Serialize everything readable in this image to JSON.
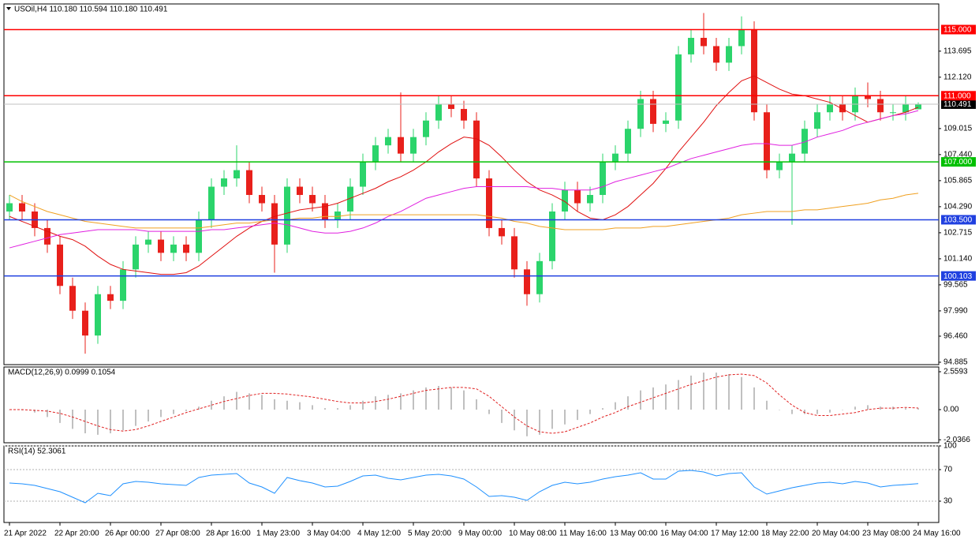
{
  "chart_data": [
    {
      "type": "candlestick",
      "title": "USOil,H4  110.180 110.594 110.180 110.491",
      "categories": [
        "21 Apr 2022",
        null,
        null,
        null,
        "22 Apr 20:00",
        null,
        null,
        null,
        "26 Apr 00:00",
        null,
        null,
        null,
        "27 Apr 08:00",
        null,
        null,
        null,
        "28 Apr 16:00",
        null,
        null,
        null,
        "1 May 23:00",
        null,
        null,
        null,
        "3 May 04:00",
        null,
        null,
        null,
        "4 May 12:00",
        null,
        null,
        null,
        "5 May 20:00",
        null,
        null,
        null,
        "9 May 00:00",
        null,
        null,
        null,
        "10 May 08:00",
        null,
        null,
        null,
        "11 May 16:00",
        null,
        null,
        null,
        "13 May 00:00",
        null,
        null,
        null,
        "16 May 04:00",
        null,
        null,
        null,
        "17 May 12:00",
        null,
        null,
        null,
        "18 May 22:00",
        null,
        null,
        null,
        "20 May 04:00",
        null,
        null,
        null,
        "23 May 08:00",
        null,
        null,
        null,
        "24 May 16:00"
      ],
      "open": [
        104.0,
        104.5,
        104.0,
        103.0,
        102.0,
        99.5,
        98.0,
        96.5,
        99.0,
        98.6,
        100.5,
        102.0,
        102.3,
        101.5,
        102.0,
        101.5,
        103.5,
        105.5,
        106.0,
        106.5,
        105.0,
        104.5,
        102.0,
        105.5,
        105.0,
        104.5,
        103.5,
        104.0,
        105.5,
        107.0,
        108.0,
        108.5,
        107.5,
        108.5,
        109.5,
        110.5,
        110.2,
        109.5,
        106.0,
        103.0,
        102.5,
        100.5,
        99.0,
        101.0,
        104.0,
        105.3,
        104.5,
        105.0,
        107.0,
        107.5,
        109.0,
        110.8,
        109.3,
        109.5,
        113.5,
        114.5,
        114.0,
        113.0,
        114.0,
        115.0,
        110.0,
        106.5,
        107.0,
        107.5,
        109.0,
        110.0,
        110.5,
        110.0,
        111.0,
        110.8,
        110.0,
        110.0,
        110.18
      ],
      "high": [
        105.0,
        105.0,
        104.5,
        103.5,
        102.5,
        100.0,
        98.5,
        99.5,
        99.5,
        101.0,
        102.5,
        102.8,
        102.8,
        102.5,
        102.5,
        104.0,
        106.0,
        106.5,
        108.0,
        107.0,
        105.5,
        105.0,
        106.0,
        106.0,
        105.5,
        105.0,
        104.5,
        106.0,
        107.5,
        108.5,
        109.0,
        111.2,
        109.0,
        110.0,
        111.0,
        111.0,
        110.7,
        110.0,
        106.5,
        103.5,
        103.0,
        101.0,
        101.5,
        104.5,
        105.8,
        105.8,
        105.5,
        107.5,
        108.0,
        109.5,
        111.3,
        111.3,
        110.0,
        114.0,
        115.0,
        116.0,
        114.5,
        114.5,
        115.8,
        115.5,
        110.5,
        107.5,
        108.0,
        109.5,
        110.5,
        111.0,
        111.0,
        111.5,
        111.8,
        111.3,
        110.5,
        111.0,
        110.594
      ],
      "low": [
        103.5,
        103.5,
        102.5,
        101.5,
        99.0,
        97.5,
        95.4,
        96.0,
        98.1,
        98.1,
        100.0,
        101.5,
        101.0,
        101.0,
        101.0,
        101.0,
        103.0,
        105.0,
        105.5,
        104.5,
        104.0,
        100.3,
        101.5,
        104.5,
        104.0,
        103.0,
        103.0,
        103.5,
        105.0,
        106.5,
        107.5,
        107.0,
        107.0,
        108.0,
        109.0,
        109.7,
        109.0,
        105.5,
        102.5,
        102.0,
        100.0,
        98.3,
        98.5,
        100.5,
        103.5,
        104.0,
        104.0,
        104.5,
        106.5,
        107.0,
        108.5,
        108.8,
        108.8,
        109.0,
        113.0,
        113.5,
        112.5,
        112.5,
        113.5,
        109.5,
        106.0,
        106.0,
        103.2,
        107.0,
        108.5,
        109.5,
        109.5,
        109.5,
        110.3,
        109.5,
        109.5,
        109.5,
        110.18
      ],
      "close": [
        104.5,
        104.0,
        103.0,
        102.0,
        99.5,
        98.0,
        96.5,
        99.0,
        98.6,
        100.5,
        102.0,
        102.3,
        101.5,
        102.0,
        101.5,
        103.5,
        105.5,
        106.0,
        106.5,
        105.0,
        104.5,
        102.0,
        105.5,
        105.0,
        104.5,
        103.5,
        104.0,
        105.5,
        107.0,
        108.0,
        108.5,
        107.5,
        108.5,
        109.5,
        110.5,
        110.2,
        109.5,
        106.0,
        103.0,
        102.5,
        100.5,
        99.0,
        101.0,
        104.0,
        105.3,
        104.5,
        105.0,
        107.0,
        107.5,
        109.0,
        110.8,
        109.3,
        109.5,
        113.5,
        114.5,
        114.0,
        113.0,
        114.0,
        115.0,
        110.0,
        106.5,
        107.0,
        107.5,
        109.0,
        110.0,
        110.5,
        110.0,
        111.0,
        110.8,
        110.0,
        110.0,
        110.5,
        110.491
      ],
      "up_color": "#2bd46b",
      "down_color": "#e8201b",
      "series": [
        {
          "color": "#e01010",
          "values": [
            103.7,
            103.4,
            103.1,
            102.8,
            102.5,
            102.3,
            101.9,
            101.3,
            100.8,
            100.5,
            100.4,
            100.3,
            100.2,
            100.2,
            100.3,
            100.7,
            101.3,
            101.9,
            102.5,
            103.0,
            103.4,
            103.7,
            103.9,
            104.1,
            104.2,
            104.3,
            104.5,
            104.8,
            105.1,
            105.4,
            105.8,
            106.1,
            106.5,
            107.0,
            107.6,
            108.1,
            108.5,
            108.4,
            108.0,
            107.3,
            106.5,
            105.8,
            105.3,
            105.0,
            104.6,
            104.0,
            103.6,
            103.5,
            103.8,
            104.3,
            105.0,
            105.7,
            106.6,
            107.6,
            108.5,
            109.4,
            110.4,
            111.2,
            111.9,
            112.2,
            111.8,
            111.4,
            111.1,
            111.0,
            110.8,
            110.6,
            110.2,
            109.8,
            109.4,
            109.6,
            109.8,
            110.0,
            110.3
          ]
        },
        {
          "color": "#e020e0",
          "values": [
            101.8,
            102.0,
            102.2,
            102.4,
            102.6,
            102.7,
            102.8,
            102.9,
            102.9,
            102.9,
            102.9,
            102.8,
            102.8,
            102.8,
            102.8,
            102.8,
            102.9,
            102.9,
            103.0,
            103.1,
            103.2,
            103.3,
            103.2,
            103.0,
            102.8,
            102.7,
            102.7,
            102.8,
            103.0,
            103.3,
            103.7,
            104.0,
            104.4,
            104.8,
            105.0,
            105.2,
            105.4,
            105.5,
            105.5,
            105.5,
            105.5,
            105.5,
            105.4,
            105.4,
            105.3,
            105.3,
            105.3,
            105.5,
            105.8,
            106.0,
            106.2,
            106.4,
            106.6,
            106.9,
            107.2,
            107.4,
            107.6,
            107.8,
            108.0,
            108.1,
            108.1,
            108.0,
            108.0,
            108.2,
            108.5,
            108.7,
            108.9,
            109.2,
            109.4,
            109.6,
            109.8,
            109.9,
            110.1
          ]
        },
        {
          "color": "#f0a020",
          "values": [
            105.0,
            104.6,
            104.3,
            104.0,
            103.8,
            103.6,
            103.4,
            103.3,
            103.2,
            103.1,
            103.0,
            103.0,
            103.0,
            103.0,
            103.0,
            103.0,
            103.1,
            103.2,
            103.3,
            103.3,
            103.4,
            103.5,
            103.5,
            103.6,
            103.6,
            103.7,
            103.7,
            103.8,
            103.8,
            103.8,
            103.8,
            103.8,
            103.8,
            103.8,
            103.8,
            103.8,
            103.8,
            103.8,
            103.7,
            103.6,
            103.4,
            103.3,
            103.1,
            103.0,
            102.9,
            102.9,
            102.9,
            102.9,
            103.0,
            103.0,
            103.0,
            103.1,
            103.1,
            103.2,
            103.3,
            103.4,
            103.5,
            103.6,
            103.8,
            103.9,
            104.0,
            104.0,
            104.0,
            104.1,
            104.1,
            104.2,
            104.3,
            104.4,
            104.5,
            104.7,
            104.8,
            105.0,
            105.1
          ]
        }
      ],
      "levels": [
        {
          "value": 115,
          "label": "115.000",
          "color": "#ff0000"
        },
        {
          "value": 111,
          "label": "111.000",
          "color": "#ff0000"
        },
        {
          "value": 107,
          "label": "107.000",
          "color": "#00c000"
        },
        {
          "value": 103.5,
          "label": "103.500",
          "color": "#2040e0"
        },
        {
          "value": 100.103,
          "label": "100.103",
          "color": "#2040e0"
        }
      ],
      "last_price": 110.491,
      "ylim": [
        94.74,
        116.55
      ],
      "yticks": [
        113.695,
        {
          "value": 112.12,
          "label": "112.120"
        },
        109.015,
        {
          "value": 107.44,
          "label": "107.440"
        },
        105.865,
        {
          "value": 104.29,
          "label": "104.290"
        },
        102.715,
        {
          "value": 101.14,
          "label": "101.140"
        },
        99.565,
        {
          "value": 97.99,
          "label": "97.990"
        },
        {
          "value": 96.46,
          "label": "96.460"
        },
        94.885
      ],
      "grid": false
    },
    {
      "type": "macd",
      "title": "MACD(12,26,9) 0.0999 0.1054",
      "series": [
        {
          "color": "#c0c0c0",
          "style": "histogram",
          "values": [
            0.0,
            -0.05,
            -0.2,
            -0.5,
            -0.9,
            -1.3,
            -1.6,
            -1.7,
            -1.6,
            -1.4,
            -1.1,
            -0.8,
            -0.5,
            -0.3,
            -0.1,
            0.2,
            0.6,
            0.9,
            1.2,
            1.1,
            1.0,
            0.7,
            0.6,
            0.5,
            0.3,
            0.1,
            0.1,
            0.3,
            0.6,
            0.9,
            1.0,
            1.1,
            1.3,
            1.5,
            1.6,
            1.5,
            1.3,
            0.7,
            -0.3,
            -0.9,
            -1.4,
            -1.8,
            -1.7,
            -1.3,
            -1.0,
            -0.7,
            -0.3,
            0.1,
            0.5,
            0.9,
            1.3,
            1.5,
            1.7,
            2.0,
            2.3,
            2.5,
            2.5,
            2.4,
            2.2,
            1.5,
            0.6,
            0.0,
            -0.3,
            -0.3,
            -0.3,
            -0.2,
            0.0,
            0.2,
            0.3,
            0.2,
            0.2,
            0.1,
            0.0999
          ]
        },
        {
          "color": "#e02020",
          "style": "dashed",
          "values": [
            0.0,
            0.0,
            -0.05,
            -0.1,
            -0.25,
            -0.5,
            -0.8,
            -1.1,
            -1.35,
            -1.45,
            -1.35,
            -1.1,
            -0.8,
            -0.5,
            -0.2,
            0.05,
            0.3,
            0.55,
            0.75,
            0.95,
            1.1,
            1.1,
            1.05,
            0.95,
            0.85,
            0.7,
            0.55,
            0.45,
            0.45,
            0.55,
            0.7,
            0.9,
            1.1,
            1.3,
            1.4,
            1.5,
            1.5,
            1.4,
            0.9,
            0.2,
            -0.5,
            -1.1,
            -1.5,
            -1.6,
            -1.5,
            -1.2,
            -0.9,
            -0.5,
            -0.2,
            0.2,
            0.5,
            0.8,
            1.1,
            1.4,
            1.7,
            1.95,
            2.2,
            2.35,
            2.4,
            2.3,
            1.8,
            1.0,
            0.3,
            -0.2,
            -0.4,
            -0.4,
            -0.3,
            -0.2,
            0.0,
            0.1,
            0.1,
            0.15,
            0.1054
          ]
        }
      ],
      "ylim": [
        -2.24,
        2.88
      ],
      "yticks": [
        2.5593,
        {
          "value": 0,
          "label": "0.00"
        },
        -2.0366
      ],
      "grid": false
    },
    {
      "type": "line",
      "title": "RSI(14) 52.3061",
      "series": [
        {
          "color": "#1e90ff",
          "values": [
            53,
            52,
            50,
            46,
            42,
            35,
            28,
            40,
            37,
            52,
            55,
            54,
            52,
            51,
            50,
            60,
            63,
            64,
            65,
            53,
            48,
            40,
            60,
            56,
            53,
            48,
            49,
            55,
            62,
            63,
            59,
            57,
            60,
            63,
            64,
            62,
            58,
            48,
            36,
            37,
            35,
            31,
            42,
            50,
            54,
            52,
            54,
            58,
            61,
            63,
            66,
            58,
            58,
            68,
            69,
            67,
            62,
            65,
            66,
            48,
            39,
            43,
            47,
            50,
            53,
            54,
            52,
            55,
            53,
            48,
            50,
            51,
            52.3061
          ]
        }
      ],
      "ylim": [
        3,
        100
      ],
      "yticks": [
        100,
        70,
        30
      ],
      "grid": true
    }
  ]
}
